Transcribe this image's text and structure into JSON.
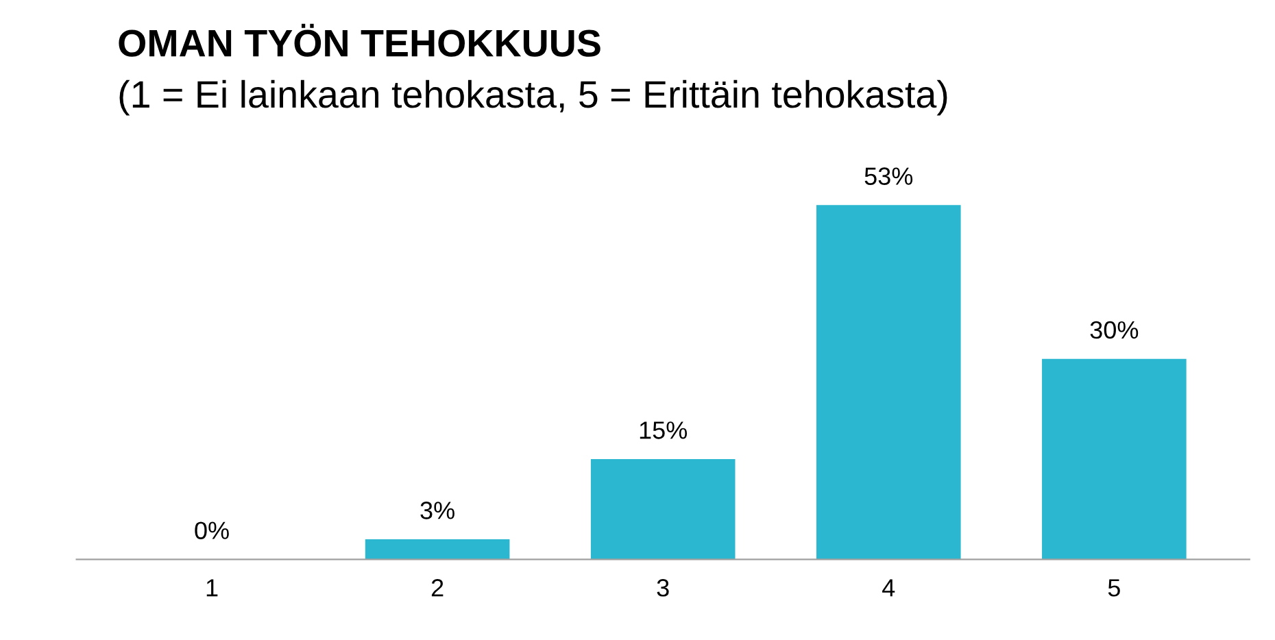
{
  "chart_data": {
    "type": "bar",
    "title": "OMAN TYÖN TEHOKKUUS",
    "subtitle": "(1 = Ei lainkaan tehokasta, 5 = Erittäin tehokasta)",
    "categories": [
      "1",
      "2",
      "3",
      "4",
      "5"
    ],
    "values": [
      0,
      3,
      15,
      53,
      30
    ],
    "value_labels": [
      "0%",
      "3%",
      "15%",
      "53%",
      "30%"
    ],
    "color": "#2bb7d0",
    "grid": false,
    "legend": false
  }
}
